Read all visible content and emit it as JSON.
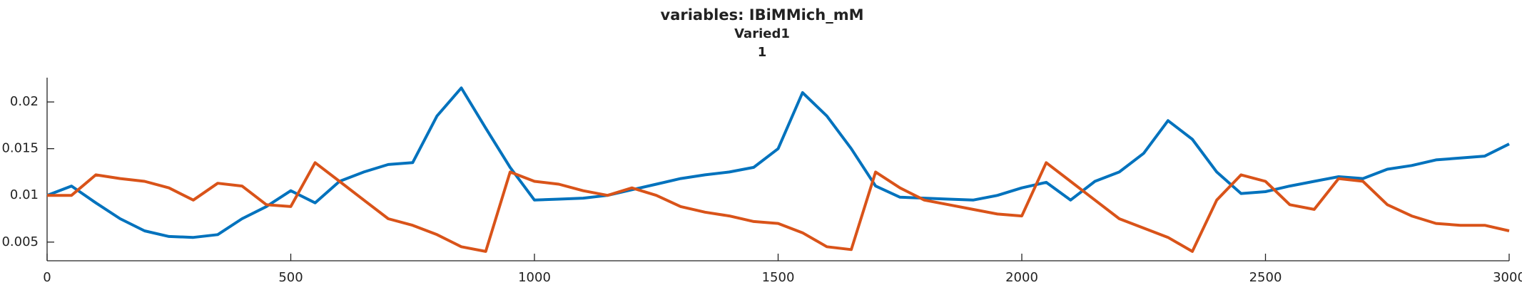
{
  "chart_data": {
    "type": "line",
    "title": "variables: IBiMMich_mM",
    "subtitle": [
      "Varied1",
      "1"
    ],
    "x": [
      0,
      50,
      100,
      150,
      200,
      250,
      300,
      350,
      400,
      450,
      500,
      550,
      600,
      650,
      700,
      750,
      800,
      850,
      900,
      950,
      1000,
      1050,
      1100,
      1150,
      1200,
      1250,
      1300,
      1350,
      1400,
      1450,
      1500,
      1550,
      1600,
      1650,
      1700,
      1750,
      1800,
      1850,
      1900,
      1950,
      2000,
      2050,
      2100,
      2150,
      2200,
      2250,
      2300,
      2350,
      2400,
      2450,
      2500,
      2550,
      2600,
      2650,
      2700,
      2750,
      2800,
      2850,
      2900,
      2950,
      3000
    ],
    "series": [
      {
        "color": "#0072bd",
        "values": [
          0.01,
          0.011,
          0.0092,
          0.0075,
          0.0062,
          0.0056,
          0.0055,
          0.0058,
          0.0075,
          0.0088,
          0.0105,
          0.0092,
          0.0115,
          0.0125,
          0.0133,
          0.0135,
          0.0185,
          0.0215,
          0.0172,
          0.013,
          0.0095,
          0.0096,
          0.0097,
          0.01,
          0.0106,
          0.0112,
          0.0118,
          0.0122,
          0.0125,
          0.013,
          0.015,
          0.021,
          0.0185,
          0.015,
          0.011,
          0.0098,
          0.0097,
          0.0096,
          0.0095,
          0.01,
          0.0108,
          0.0114,
          0.0095,
          0.0115,
          0.0125,
          0.0145,
          0.018,
          0.016,
          0.0125,
          0.0102,
          0.0104,
          0.011,
          0.0115,
          0.012,
          0.0118,
          0.0128,
          0.0132,
          0.0138,
          0.014,
          0.0142,
          0.0155
        ]
      },
      {
        "color": "#d95319",
        "values": [
          0.01,
          0.01,
          0.0122,
          0.0118,
          0.0115,
          0.0108,
          0.0095,
          0.0113,
          0.011,
          0.009,
          0.0088,
          0.0135,
          0.0115,
          0.0095,
          0.0075,
          0.0068,
          0.0058,
          0.0045,
          0.004,
          0.0125,
          0.0115,
          0.0112,
          0.0105,
          0.01,
          0.0108,
          0.01,
          0.0088,
          0.0082,
          0.0078,
          0.0072,
          0.007,
          0.006,
          0.0045,
          0.0042,
          0.0125,
          0.0108,
          0.0095,
          0.009,
          0.0085,
          0.008,
          0.0078,
          0.0135,
          0.0115,
          0.0095,
          0.0075,
          0.0065,
          0.0055,
          0.004,
          0.0095,
          0.0122,
          0.0115,
          0.009,
          0.0085,
          0.0118,
          0.0115,
          0.009,
          0.0078,
          0.007,
          0.0068,
          0.0068,
          0.0062
        ]
      }
    ],
    "xlim": [
      0,
      3000
    ],
    "xticks": [
      0,
      500,
      1000,
      1500,
      2000,
      2500,
      3000
    ],
    "ylim": [
      0.003,
      0.0226
    ],
    "yticks": [
      0.005,
      0.01,
      0.015,
      0.02
    ]
  }
}
